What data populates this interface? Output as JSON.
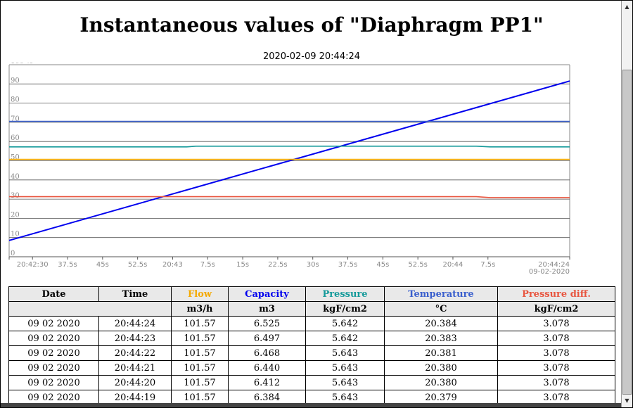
{
  "page": {
    "title": "Instantaneous values of \"Diaphragm PP1\"",
    "timestamp": "2020-02-09 20:44:24"
  },
  "colors": {
    "flow": "#f4a900",
    "capacity": "#0000ee",
    "pressure": "#159a9a",
    "temperature": "#3a5fcd",
    "pressure_diff": "#e8553f",
    "grid": "#000000",
    "axis_text": "#888888"
  },
  "chart_data": {
    "type": "line",
    "y_axis": {
      "range": [
        0,
        100
      ],
      "unit": "%",
      "ticks": [
        "0",
        "10",
        "20",
        "30",
        "40",
        "50",
        "60",
        "70",
        "80",
        "90",
        "100 %"
      ]
    },
    "x_axis": {
      "start_time": "20:42:25",
      "end_time": "20:44:24",
      "tick_labels": [
        "20:42:30",
        "37.5s",
        "45s",
        "52.5s",
        "20:43",
        "7.5s",
        "15s",
        "22.5s",
        "30s",
        "37.5s",
        "45s",
        "52.5s",
        "20:44",
        "7.5s",
        "20:44:24"
      ],
      "end_date": "09-02-2020"
    },
    "series": [
      {
        "key": "capacity",
        "points": [
          [
            0,
            8.5
          ],
          [
            120,
            91.5
          ]
        ]
      },
      {
        "key": "temperature",
        "points": [
          [
            0,
            70.5
          ],
          [
            120,
            70.5
          ]
        ]
      },
      {
        "key": "pressure",
        "points": [
          [
            0,
            57.2
          ],
          [
            38,
            57.2
          ],
          [
            40,
            57.6
          ],
          [
            100,
            57.6
          ],
          [
            103,
            57.2
          ],
          [
            120,
            57.2
          ]
        ]
      },
      {
        "key": "flow",
        "points": [
          [
            0,
            50.7
          ],
          [
            120,
            50.7
          ]
        ]
      },
      {
        "key": "pressure_diff",
        "points": [
          [
            0,
            31.3
          ],
          [
            100,
            31.3
          ],
          [
            103,
            30.8
          ],
          [
            120,
            30.8
          ]
        ]
      }
    ]
  },
  "table": {
    "headers": [
      "Date",
      "Time",
      "Flow",
      "Capacity",
      "Pressure",
      "Temperature",
      "Pressure diff."
    ],
    "header_color_keys": [
      "",
      "",
      "flow",
      "capacity",
      "pressure",
      "temperature",
      "pressure_diff"
    ],
    "units": [
      "m3/h",
      "m3",
      "kgF/cm2",
      "°C",
      "kgF/cm2"
    ],
    "rows": [
      [
        "09 02 2020",
        "20:44:24",
        "101.57",
        "6.525",
        "5.642",
        "20.384",
        "3.078"
      ],
      [
        "09 02 2020",
        "20:44:23",
        "101.57",
        "6.497",
        "5.642",
        "20.383",
        "3.078"
      ],
      [
        "09 02 2020",
        "20:44:22",
        "101.57",
        "6.468",
        "5.643",
        "20.381",
        "3.078"
      ],
      [
        "09 02 2020",
        "20:44:21",
        "101.57",
        "6.440",
        "5.643",
        "20.380",
        "3.078"
      ],
      [
        "09 02 2020",
        "20:44:20",
        "101.57",
        "6.412",
        "5.643",
        "20.380",
        "3.078"
      ],
      [
        "09 02 2020",
        "20:44:19",
        "101.57",
        "6.384",
        "5.643",
        "20.379",
        "3.078"
      ]
    ]
  },
  "scrollbar": {
    "up_icon": "triangle-up-icon",
    "down_icon": "triangle-down-icon"
  }
}
